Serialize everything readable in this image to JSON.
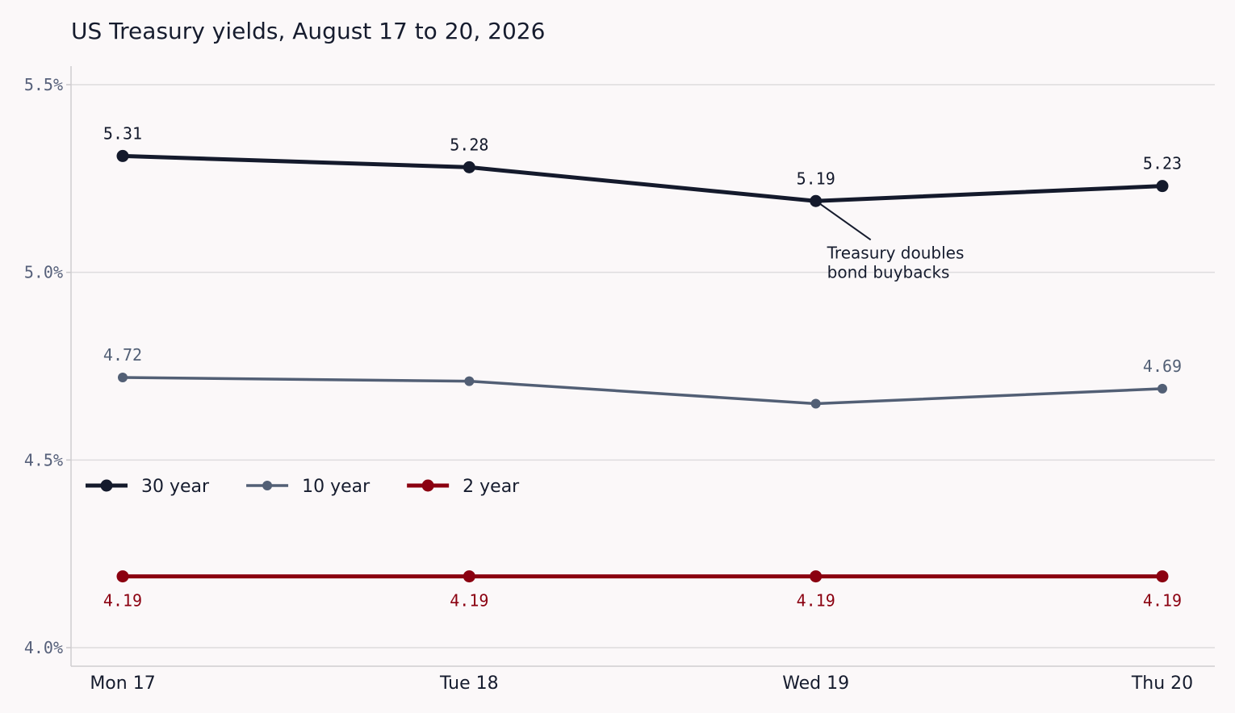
{
  "chart_data": {
    "type": "line",
    "title": "US Treasury yields, August 17 to 20, 2026",
    "xlabel": "",
    "ylabel": "",
    "categories": [
      "Mon 17",
      "Tue 18",
      "Wed 19",
      "Thu 20"
    ],
    "ylim": [
      4.0,
      5.5
    ],
    "yticks": [
      4.0,
      4.5,
      5.0,
      5.5
    ],
    "ytick_labels": [
      "4.0%",
      "4.5%",
      "5.0%",
      "5.5%"
    ],
    "grid": "horizontal",
    "legend_position": "middle-left",
    "series": [
      {
        "name": "30 year",
        "values": [
          5.31,
          5.28,
          5.19,
          5.23
        ],
        "color": "#141a2c",
        "labels": [
          "5.31",
          "5.28",
          "5.19",
          "5.23"
        ],
        "label_position": "above"
      },
      {
        "name": "10 year",
        "values": [
          4.72,
          4.71,
          4.65,
          4.69
        ],
        "color": "#525f75",
        "labels": [
          "4.72",
          "",
          "",
          "4.69"
        ],
        "label_position": "above"
      },
      {
        "name": "2 year",
        "values": [
          4.19,
          4.19,
          4.19,
          4.19
        ],
        "color": "#8b0010",
        "labels": [
          "4.19",
          "4.19",
          "4.19",
          "4.19"
        ],
        "label_position": "below"
      }
    ],
    "annotations": [
      {
        "series": "30 year",
        "category": "Wed 19",
        "lines": [
          "Treasury doubles",
          "bond buybacks"
        ]
      }
    ]
  }
}
